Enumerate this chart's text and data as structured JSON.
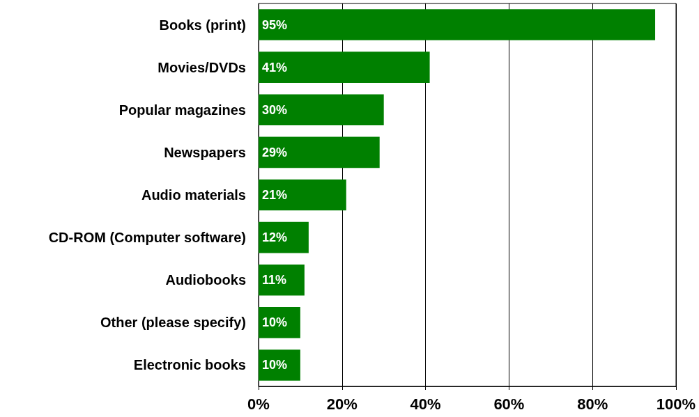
{
  "chart_data": {
    "type": "bar",
    "orientation": "horizontal",
    "categories": [
      "Books (print)",
      "Movies/DVDs",
      "Popular magazines",
      "Newspapers",
      "Audio materials",
      "CD-ROM (Computer software)",
      "Audiobooks",
      "Other (please specify)",
      "Electronic books"
    ],
    "values": [
      95,
      41,
      30,
      29,
      21,
      12,
      11,
      10,
      10
    ],
    "value_labels": [
      "95%",
      "41%",
      "30%",
      "29%",
      "21%",
      "12%",
      "11%",
      "10%",
      "10%"
    ],
    "color": "#008000",
    "xlim": [
      0,
      100
    ],
    "xticks": [
      {
        "value": 0,
        "label": "0%"
      },
      {
        "value": 20,
        "label": "20%"
      },
      {
        "value": 40,
        "label": "40%"
      },
      {
        "value": 60,
        "label": "60%"
      },
      {
        "value": 80,
        "label": "80%"
      },
      {
        "value": 100,
        "label": "100%"
      }
    ],
    "grid": "x"
  }
}
